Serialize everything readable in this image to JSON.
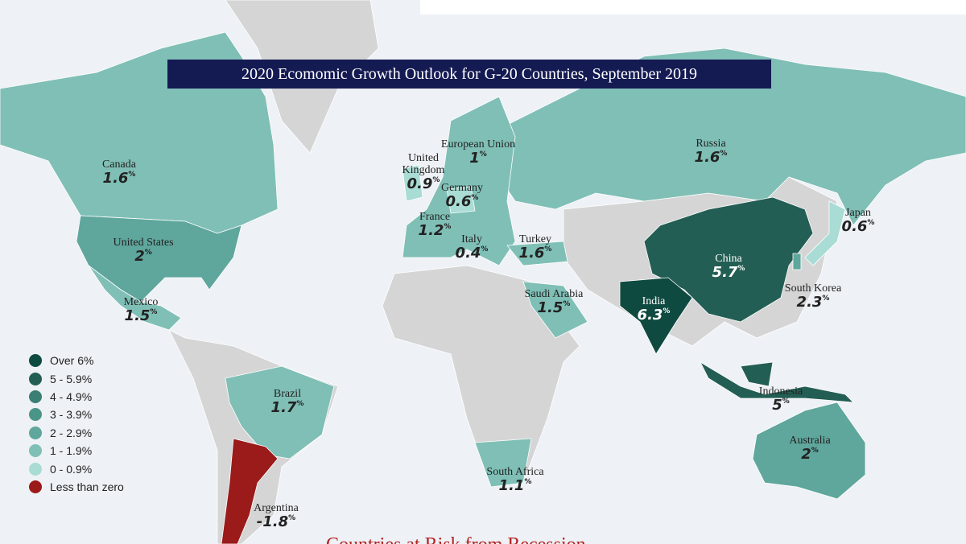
{
  "header": {
    "title": "2020 Ecomomic Growth Outlook for G-20 Countries, September 2019"
  },
  "countries": [
    {
      "name": "Canada",
      "value": 1.6,
      "unit": "%"
    },
    {
      "name": "United States",
      "value": 2,
      "unit": "%"
    },
    {
      "name": "Mexico",
      "value": 1.5,
      "unit": "%"
    },
    {
      "name": "Brazil",
      "value": 1.7,
      "unit": "%"
    },
    {
      "name": "Argentina",
      "value": -1.8,
      "unit": "%"
    },
    {
      "name": "European Union",
      "value": 1,
      "unit": "%"
    },
    {
      "name": "United Kingdom",
      "value": 0.9,
      "unit": "%"
    },
    {
      "name": "Germany",
      "value": 0.6,
      "unit": "%"
    },
    {
      "name": "France",
      "value": 1.2,
      "unit": "%"
    },
    {
      "name": "Italy",
      "value": 0.4,
      "unit": "%"
    },
    {
      "name": "Turkey",
      "value": 1.6,
      "unit": "%"
    },
    {
      "name": "Russia",
      "value": 1.6,
      "unit": "%"
    },
    {
      "name": "Japan",
      "value": 0.6,
      "unit": "%"
    },
    {
      "name": "China",
      "value": 5.7,
      "unit": "%"
    },
    {
      "name": "South Korea",
      "value": 2.3,
      "unit": "%"
    },
    {
      "name": "India",
      "value": 6.3,
      "unit": "%"
    },
    {
      "name": "Saudi Arabia",
      "value": 1.5,
      "unit": "%"
    },
    {
      "name": "Indonesia",
      "value": 5,
      "unit": "%"
    },
    {
      "name": "Australia",
      "value": 2,
      "unit": "%"
    },
    {
      "name": "South Africa",
      "value": 1.1,
      "unit": "%"
    }
  ],
  "legend": [
    {
      "label": "Over 6%",
      "color": "#0f4a40"
    },
    {
      "label": "5 - 5.9%",
      "color": "#235e54"
    },
    {
      "label": "4 - 4.9%",
      "color": "#3b7f74"
    },
    {
      "label": "3 - 3.9%",
      "color": "#4a9488"
    },
    {
      "label": "2 - 2.9%",
      "color": "#5fa69c"
    },
    {
      "label": "1 - 1.9%",
      "color": "#7fbfb6"
    },
    {
      "label": "0 - 0.9%",
      "color": "#a8dcd4"
    },
    {
      "label": "Less than zero",
      "color": "#9b1a1a"
    }
  ],
  "footer": {
    "heading": "Countries at Risk from Recession"
  }
}
